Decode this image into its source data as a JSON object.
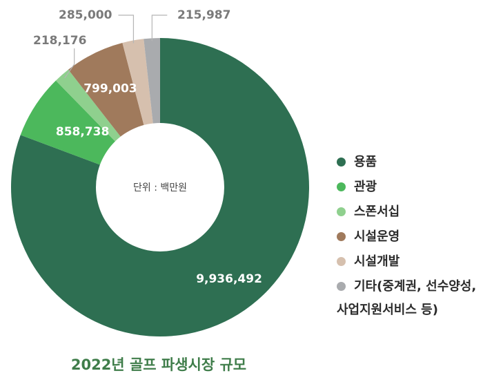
{
  "chart_data": {
    "type": "pie",
    "title": "2022년 골프 파생시장 규모",
    "center_label": "단위 : 백만원",
    "categories": [
      "용품",
      "관광",
      "스폰서십",
      "시설운영",
      "시설개발",
      "기타(중계권, 선수양성, 사업지원서비스 등)"
    ],
    "values": [
      9936492,
      858738,
      218176,
      799003,
      285000,
      215987
    ],
    "value_labels": [
      "9,936,492",
      "858,738",
      "218,176",
      "799,003",
      "285,000",
      "215,987"
    ],
    "colors": [
      "#2e6f52",
      "#4cb85c",
      "#8fd08e",
      "#a07a5c",
      "#d6c0ae",
      "#a9abae"
    ],
    "legend_lines": [
      [
        "용품"
      ],
      [
        "관광"
      ],
      [
        "스폰서십"
      ],
      [
        "시설운영"
      ],
      [
        "시설개발"
      ],
      [
        "기타(중계권, 선수양성,",
        "사업지원서비스 등)"
      ]
    ],
    "legend_position": "right"
  }
}
